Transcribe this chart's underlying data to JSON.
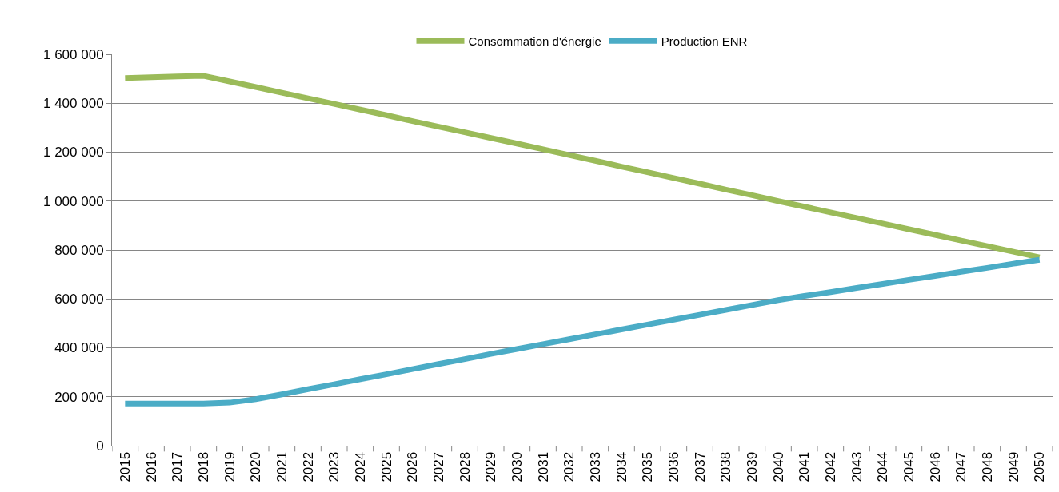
{
  "chart_data": {
    "type": "line",
    "categories": [
      "2015",
      "2016",
      "2017",
      "2018",
      "2019",
      "2020",
      "2021",
      "2022",
      "2023",
      "2024",
      "2025",
      "2026",
      "2027",
      "2028",
      "2029",
      "2030",
      "2031",
      "2032",
      "2033",
      "2034",
      "2035",
      "2036",
      "2037",
      "2038",
      "2039",
      "2040",
      "2041",
      "2042",
      "2043",
      "2044",
      "2045",
      "2046",
      "2047",
      "2048",
      "2049",
      "2050"
    ],
    "series": [
      {
        "name": "Consommation d'énergie",
        "color": "#9bbb59",
        "values": [
          1503000,
          1506000,
          1509000,
          1512000,
          1489000,
          1466000,
          1443000,
          1420000,
          1397000,
          1374000,
          1351000,
          1327000,
          1304000,
          1281000,
          1258000,
          1235000,
          1212000,
          1188000,
          1165000,
          1141000,
          1118000,
          1094000,
          1071000,
          1047000,
          1024000,
          1000000,
          977000,
          954000,
          931000,
          908000,
          885000,
          862000,
          839000,
          816000,
          793000,
          770000
        ]
      },
      {
        "name": "Production ENR",
        "color": "#4bacc6",
        "values": [
          172000,
          172000,
          172000,
          172000,
          176000,
          190000,
          210000,
          231000,
          251000,
          272000,
          292000,
          313000,
          334000,
          354000,
          375000,
          395000,
          415000,
          435000,
          455000,
          475000,
          495000,
          515000,
          535000,
          555000,
          575000,
          595000,
          612000,
          628000,
          645000,
          661000,
          678000,
          694000,
          711000,
          727000,
          744000,
          760000
        ]
      }
    ],
    "ylim": [
      0,
      1600000
    ],
    "yticks": [
      0,
      {
        "value": 200000,
        "label": "200 000"
      },
      {
        "value": 400000,
        "label": "400 000"
      },
      {
        "value": 600000,
        "label": "600 000"
      },
      {
        "value": 800000,
        "label": "800 000"
      },
      {
        "value": 1000000,
        "label": "1 000 000"
      },
      {
        "value": 1200000,
        "label": "1 200 000"
      },
      {
        "value": 1400000,
        "label": "1 400 000"
      },
      {
        "value": 1600000,
        "label": "1 600 000"
      }
    ],
    "grid": "y",
    "legend": "top",
    "marker": "none",
    "line_style": "solid"
  }
}
